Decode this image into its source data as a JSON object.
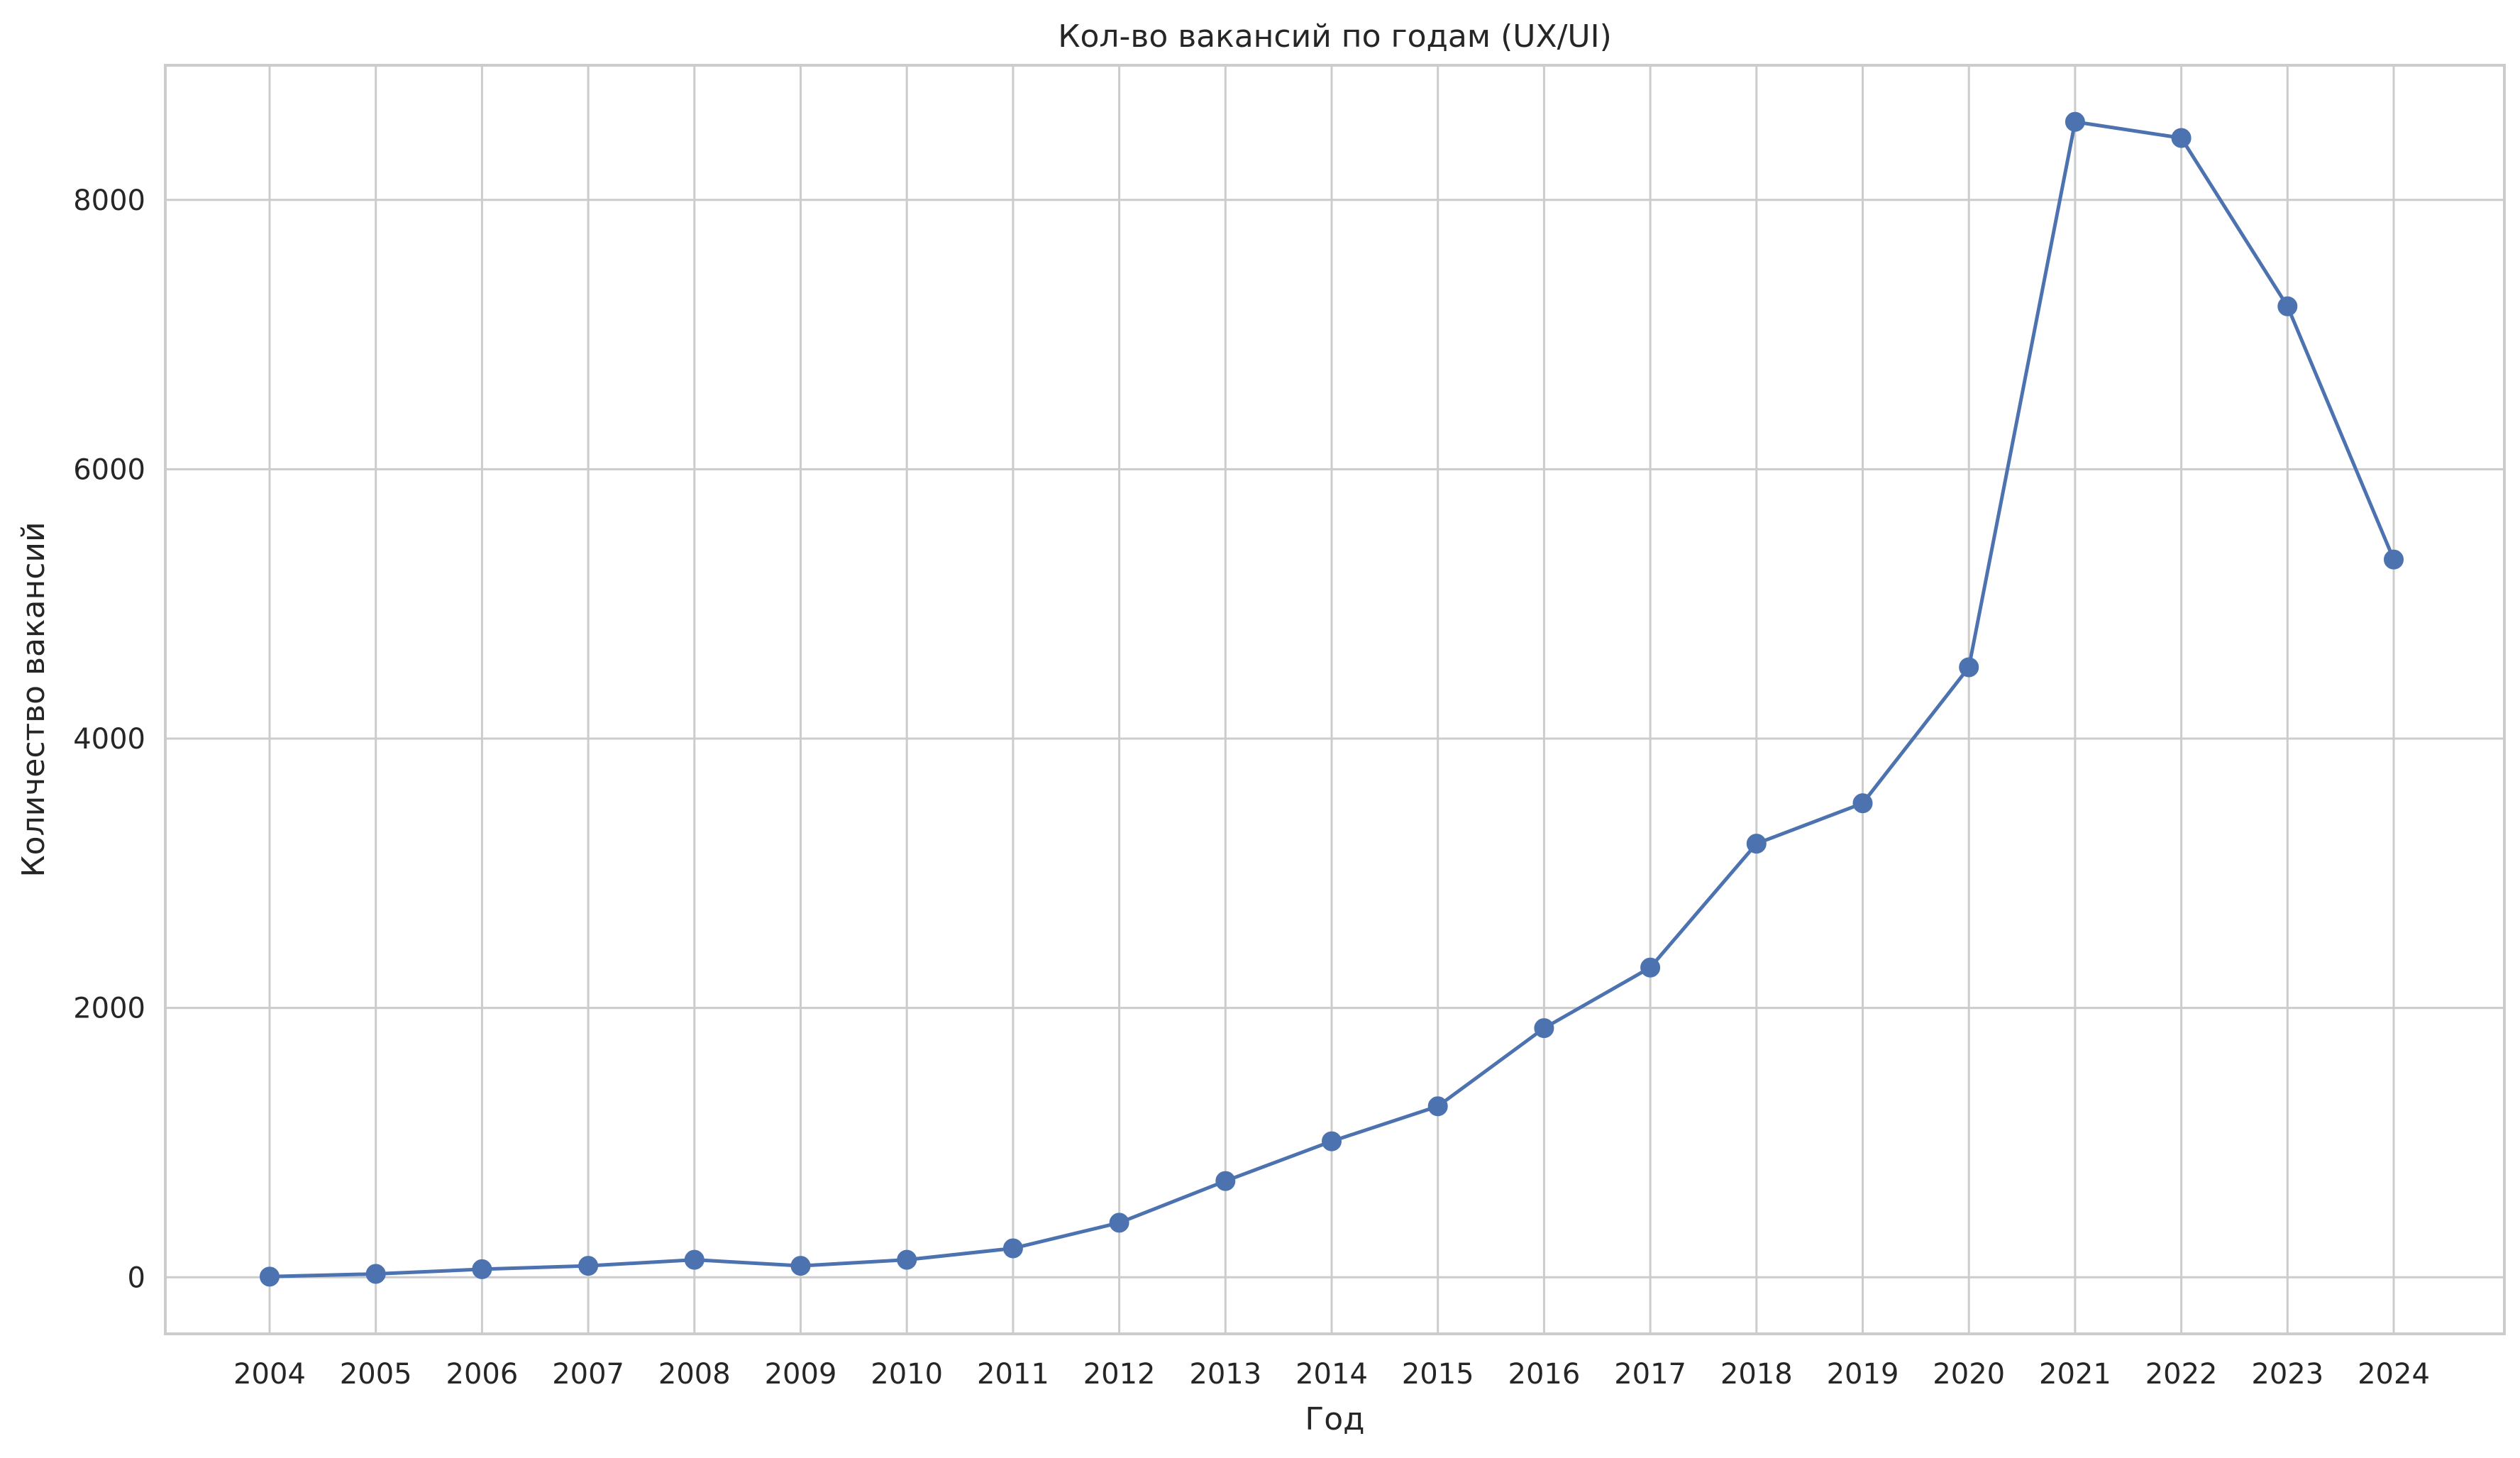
{
  "chart_data": {
    "type": "line",
    "title": "Кол-во вакансий по годам (UX/UI)",
    "xlabel": "Год",
    "ylabel": "Количество вакансий",
    "x": [
      "2004",
      "2005",
      "2006",
      "2007",
      "2008",
      "2009",
      "2010",
      "2011",
      "2012",
      "2013",
      "2014",
      "2015",
      "2016",
      "2017",
      "2018",
      "2019",
      "2020",
      "2021",
      "2022",
      "2023",
      "2024"
    ],
    "series": [
      {
        "values": [
          5,
          25,
          60,
          85,
          130,
          85,
          130,
          215,
          405,
          715,
          1010,
          1270,
          1850,
          2300,
          3220,
          3520,
          4530,
          8580,
          8460,
          7210,
          5330
        ],
        "color": "#4c72b0"
      }
    ],
    "yticks": [
      0,
      2000,
      4000,
      6000,
      8000
    ],
    "ylim": [
      -420,
      9000
    ],
    "grid": true,
    "marker": "circle"
  }
}
